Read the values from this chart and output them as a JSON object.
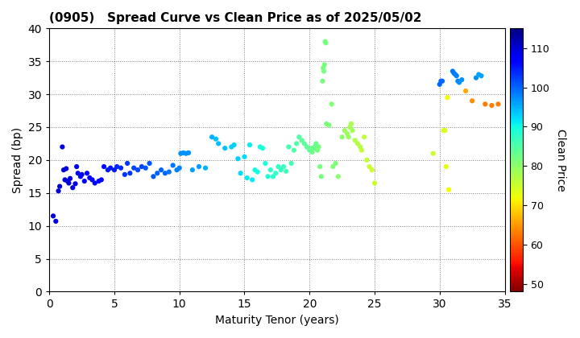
{
  "title": "(0905)   Spread Curve vs Clean Price as of 2025/05/02",
  "xlabel": "Maturity Tenor (years)",
  "ylabel": "Spread (bp)",
  "colorbar_label": "Clean Price",
  "xlim": [
    0,
    35
  ],
  "ylim": [
    0,
    40
  ],
  "xticks": [
    0,
    5,
    10,
    15,
    20,
    25,
    30,
    35
  ],
  "yticks": [
    0,
    5,
    10,
    15,
    20,
    25,
    30,
    35,
    40
  ],
  "cbar_ticks": [
    50,
    60,
    70,
    80,
    90,
    100,
    110
  ],
  "vmin": 48,
  "vmax": 115,
  "points": [
    [
      0.3,
      11.5,
      109
    ],
    [
      0.5,
      10.7,
      109
    ],
    [
      0.7,
      15.3,
      110
    ],
    [
      0.8,
      16.0,
      110
    ],
    [
      1.0,
      22.0,
      110
    ],
    [
      1.1,
      18.5,
      110
    ],
    [
      1.2,
      17.0,
      110
    ],
    [
      1.3,
      18.7,
      110
    ],
    [
      1.4,
      16.8,
      110
    ],
    [
      1.5,
      16.5,
      110
    ],
    [
      1.6,
      17.2,
      109
    ],
    [
      1.8,
      15.8,
      109
    ],
    [
      2.0,
      16.4,
      109
    ],
    [
      2.1,
      19.0,
      109
    ],
    [
      2.2,
      18.0,
      108
    ],
    [
      2.4,
      17.5,
      108
    ],
    [
      2.5,
      17.8,
      108
    ],
    [
      2.7,
      16.8,
      107
    ],
    [
      2.9,
      18.0,
      107
    ],
    [
      3.1,
      17.3,
      107
    ],
    [
      3.3,
      17.0,
      107
    ],
    [
      3.5,
      16.5,
      106
    ],
    [
      3.8,
      16.8,
      106
    ],
    [
      4.0,
      17.0,
      106
    ],
    [
      4.2,
      19.0,
      106
    ],
    [
      4.5,
      18.5,
      105
    ],
    [
      4.7,
      18.8,
      105
    ],
    [
      5.0,
      18.5,
      105
    ],
    [
      5.2,
      19.0,
      104
    ],
    [
      5.5,
      18.8,
      104
    ],
    [
      5.8,
      17.8,
      103
    ],
    [
      6.0,
      19.5,
      103
    ],
    [
      6.2,
      18.0,
      103
    ],
    [
      6.5,
      18.8,
      102
    ],
    [
      6.8,
      18.5,
      102
    ],
    [
      7.1,
      19.0,
      102
    ],
    [
      7.4,
      18.8,
      101
    ],
    [
      7.7,
      19.5,
      101
    ],
    [
      8.0,
      17.5,
      101
    ],
    [
      8.3,
      18.0,
      100
    ],
    [
      8.6,
      18.5,
      100
    ],
    [
      8.9,
      18.0,
      100
    ],
    [
      9.2,
      18.2,
      99
    ],
    [
      9.5,
      19.2,
      99
    ],
    [
      9.8,
      18.5,
      98
    ],
    [
      10.0,
      18.8,
      98
    ],
    [
      10.1,
      21.0,
      97
    ],
    [
      10.3,
      21.1,
      97
    ],
    [
      10.5,
      21.0,
      97
    ],
    [
      10.7,
      21.1,
      97
    ],
    [
      11.0,
      18.5,
      96
    ],
    [
      11.5,
      19.0,
      96
    ],
    [
      12.0,
      18.8,
      95
    ],
    [
      12.5,
      23.5,
      95
    ],
    [
      12.8,
      23.2,
      94
    ],
    [
      13.0,
      22.5,
      94
    ],
    [
      13.5,
      21.8,
      94
    ],
    [
      14.0,
      22.0,
      93
    ],
    [
      14.2,
      22.3,
      93
    ],
    [
      14.5,
      20.2,
      93
    ],
    [
      14.7,
      18.0,
      92
    ],
    [
      15.0,
      20.5,
      92
    ],
    [
      15.2,
      17.3,
      91
    ],
    [
      15.4,
      22.3,
      91
    ],
    [
      15.6,
      17.0,
      91
    ],
    [
      15.8,
      18.5,
      90
    ],
    [
      16.0,
      18.2,
      90
    ],
    [
      16.2,
      22.0,
      90
    ],
    [
      16.4,
      21.8,
      89
    ],
    [
      16.6,
      19.5,
      89
    ],
    [
      16.8,
      17.5,
      89
    ],
    [
      17.0,
      18.5,
      88
    ],
    [
      17.2,
      17.5,
      88
    ],
    [
      17.4,
      18.0,
      88
    ],
    [
      17.6,
      19.0,
      87
    ],
    [
      17.8,
      18.5,
      87
    ],
    [
      18.0,
      19.0,
      87
    ],
    [
      18.2,
      18.3,
      86
    ],
    [
      18.4,
      22.0,
      86
    ],
    [
      18.6,
      19.5,
      86
    ],
    [
      18.8,
      21.5,
      85
    ],
    [
      19.0,
      22.5,
      85
    ],
    [
      19.2,
      23.5,
      85
    ],
    [
      19.4,
      23.0,
      84
    ],
    [
      19.6,
      22.5,
      84
    ],
    [
      19.8,
      22.0,
      84
    ],
    [
      20.0,
      21.5,
      84
    ],
    [
      20.1,
      21.8,
      83
    ],
    [
      20.2,
      21.2,
      83
    ],
    [
      20.3,
      21.8,
      83
    ],
    [
      20.4,
      22.0,
      83
    ],
    [
      20.5,
      22.5,
      83
    ],
    [
      20.6,
      21.5,
      82
    ],
    [
      20.7,
      22.0,
      82
    ],
    [
      20.8,
      19.0,
      82
    ],
    [
      20.9,
      17.5,
      82
    ],
    [
      21.0,
      32.0,
      82
    ],
    [
      21.05,
      34.0,
      82
    ],
    [
      21.1,
      33.5,
      82
    ],
    [
      21.15,
      34.5,
      82
    ],
    [
      21.2,
      38.0,
      82
    ],
    [
      21.25,
      37.8,
      82
    ],
    [
      21.3,
      25.5,
      82
    ],
    [
      21.5,
      25.3,
      81
    ],
    [
      21.7,
      28.5,
      81
    ],
    [
      21.8,
      19.0,
      81
    ],
    [
      22.0,
      19.5,
      81
    ],
    [
      22.2,
      17.5,
      80
    ],
    [
      22.5,
      23.5,
      80
    ],
    [
      22.7,
      24.5,
      79
    ],
    [
      22.9,
      24.0,
      79
    ],
    [
      23.0,
      23.5,
      79
    ],
    [
      23.1,
      25.0,
      78
    ],
    [
      23.2,
      25.5,
      78
    ],
    [
      23.3,
      24.5,
      78
    ],
    [
      23.5,
      23.0,
      77
    ],
    [
      23.7,
      22.5,
      77
    ],
    [
      23.9,
      22.0,
      77
    ],
    [
      24.0,
      21.5,
      76
    ],
    [
      24.2,
      23.5,
      76
    ],
    [
      24.4,
      20.0,
      76
    ],
    [
      24.6,
      19.0,
      75
    ],
    [
      24.8,
      18.5,
      75
    ],
    [
      25.0,
      16.5,
      75
    ],
    [
      29.5,
      21.0,
      75
    ],
    [
      30.0,
      31.5,
      100
    ],
    [
      30.1,
      32.0,
      100
    ],
    [
      30.2,
      32.0,
      100
    ],
    [
      30.3,
      24.5,
      74
    ],
    [
      30.4,
      24.5,
      74
    ],
    [
      30.5,
      19.0,
      73
    ],
    [
      30.6,
      29.5,
      72
    ],
    [
      30.7,
      15.5,
      72
    ],
    [
      31.0,
      33.5,
      99
    ],
    [
      31.1,
      33.2,
      99
    ],
    [
      31.2,
      33.0,
      98
    ],
    [
      31.3,
      32.8,
      98
    ],
    [
      31.4,
      32.0,
      98
    ],
    [
      31.5,
      31.8,
      97
    ],
    [
      31.7,
      32.2,
      97
    ],
    [
      32.0,
      30.5,
      66
    ],
    [
      32.5,
      29.0,
      64
    ],
    [
      32.8,
      32.5,
      97
    ],
    [
      33.0,
      33.0,
      96
    ],
    [
      33.2,
      32.8,
      96
    ],
    [
      33.5,
      28.5,
      63
    ],
    [
      34.0,
      28.3,
      63
    ],
    [
      34.5,
      28.5,
      63
    ]
  ]
}
